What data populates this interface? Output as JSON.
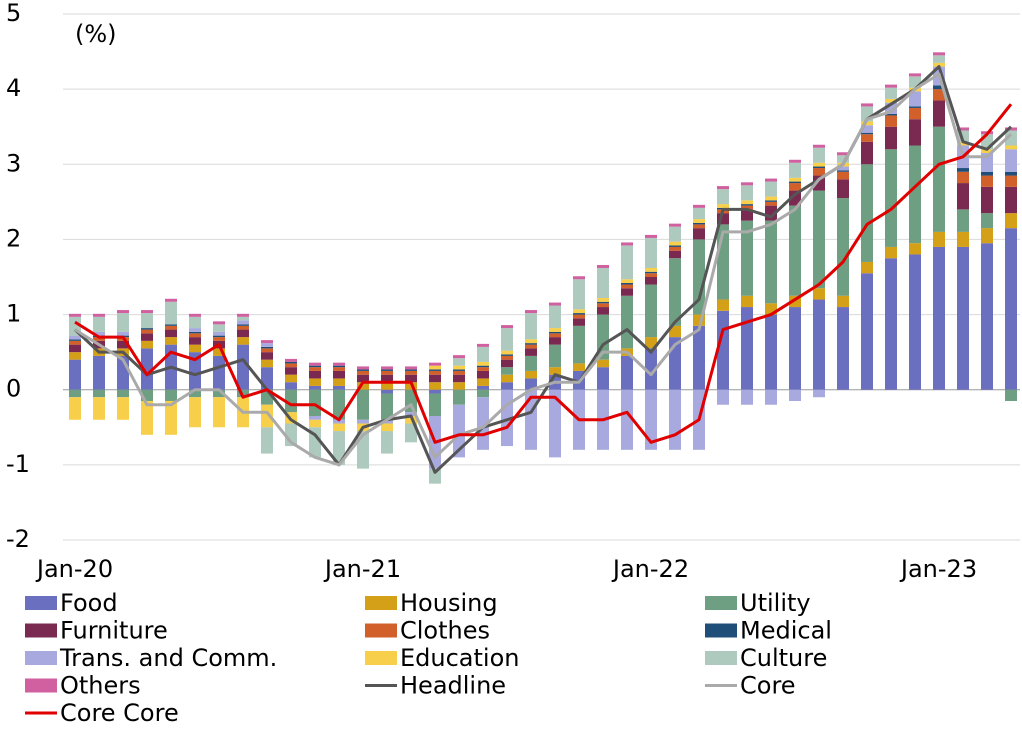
{
  "chart_data": {
    "type": "bar",
    "stacked": true,
    "annotation": "(%)",
    "categories": [
      "Jan-20",
      null,
      null,
      null,
      null,
      null,
      null,
      null,
      null,
      null,
      null,
      null,
      "Jan-21",
      null,
      null,
      null,
      null,
      null,
      null,
      null,
      null,
      null,
      null,
      null,
      "Jan-22",
      null,
      null,
      null,
      null,
      null,
      null,
      null,
      null,
      null,
      null,
      null,
      "Jan-23",
      null,
      null,
      null
    ],
    "ylim": [
      -2,
      5
    ],
    "yticks": [
      -2,
      -1,
      0,
      1,
      2,
      3,
      4,
      5
    ],
    "grid": true,
    "legend": "bottom",
    "series": [
      {
        "name": "Food",
        "color": "#6b6fbf",
        "values": [
          0.4,
          0.45,
          0.45,
          0.55,
          0.6,
          0.5,
          0.45,
          0.6,
          0.3,
          0.1,
          0.05,
          0.05,
          0.0,
          -0.05,
          0.0,
          -0.05,
          0.0,
          0.05,
          0.1,
          0.15,
          0.2,
          0.25,
          0.3,
          0.45,
          0.55,
          0.7,
          0.85,
          1.05,
          1.1,
          1.0,
          1.1,
          1.2,
          1.1,
          1.55,
          1.75,
          1.8,
          1.9,
          1.9,
          1.95,
          2.15
        ]
      },
      {
        "name": "Housing",
        "color": "#d4a017",
        "values": [
          0.1,
          0.1,
          0.1,
          0.1,
          0.1,
          0.1,
          0.1,
          0.1,
          0.1,
          0.1,
          0.1,
          0.1,
          0.1,
          0.1,
          0.1,
          0.1,
          0.1,
          0.1,
          0.1,
          0.1,
          0.1,
          0.1,
          0.1,
          0.1,
          0.15,
          0.15,
          0.15,
          0.15,
          0.15,
          0.15,
          0.15,
          0.15,
          0.15,
          0.15,
          0.15,
          0.15,
          0.2,
          0.2,
          0.2,
          0.2
        ]
      },
      {
        "name": "Utility",
        "color": "#6f9f82",
        "values": [
          -0.1,
          -0.1,
          -0.1,
          -0.15,
          -0.15,
          -0.1,
          -0.1,
          -0.1,
          -0.2,
          -0.3,
          -0.35,
          -0.4,
          -0.4,
          -0.35,
          -0.3,
          -0.3,
          -0.2,
          -0.1,
          0.1,
          0.2,
          0.3,
          0.5,
          0.6,
          0.7,
          0.7,
          0.9,
          1.0,
          1.0,
          1.0,
          1.1,
          1.2,
          1.3,
          1.3,
          1.3,
          1.3,
          1.3,
          1.4,
          0.3,
          0.2,
          -0.15
        ]
      },
      {
        "name": "Furniture",
        "color": "#7a2a50",
        "values": [
          0.1,
          0.1,
          0.1,
          0.1,
          0.1,
          0.1,
          0.1,
          0.1,
          0.1,
          0.1,
          0.1,
          0.1,
          0.1,
          0.1,
          0.1,
          0.1,
          0.1,
          0.1,
          0.1,
          0.1,
          0.1,
          0.1,
          0.1,
          0.1,
          0.1,
          0.1,
          0.15,
          0.15,
          0.15,
          0.2,
          0.2,
          0.2,
          0.25,
          0.3,
          0.3,
          0.35,
          0.35,
          0.35,
          0.35,
          0.35
        ]
      },
      {
        "name": "Clothes",
        "color": "#d2602a",
        "values": [
          0.05,
          0.05,
          0.05,
          0.05,
          0.05,
          0.05,
          0.05,
          0.05,
          0.05,
          0.05,
          0.05,
          0.05,
          0.05,
          0.05,
          0.05,
          0.05,
          0.05,
          0.05,
          0.05,
          0.05,
          0.05,
          0.05,
          0.05,
          0.05,
          0.05,
          0.05,
          0.05,
          0.05,
          0.05,
          0.05,
          0.1,
          0.1,
          0.1,
          0.1,
          0.15,
          0.15,
          0.15,
          0.15,
          0.15,
          0.15
        ]
      },
      {
        "name": "Medical",
        "color": "#1f4e79",
        "values": [
          0.02,
          0.02,
          0.02,
          0.02,
          0.02,
          0.02,
          0.02,
          0.02,
          0.02,
          0.02,
          0.02,
          0.02,
          0.02,
          0.02,
          0.02,
          0.02,
          0.02,
          0.02,
          0.02,
          0.02,
          0.02,
          0.02,
          0.02,
          0.02,
          0.02,
          0.02,
          0.02,
          0.02,
          0.02,
          0.02,
          0.02,
          0.02,
          0.02,
          0.02,
          0.02,
          0.02,
          0.05,
          0.05,
          0.05,
          0.05
        ]
      },
      {
        "name": "Trans. and Comm.",
        "color": "#a7a9df",
        "values": [
          0.05,
          0.05,
          0.05,
          0.0,
          0.0,
          0.05,
          0.05,
          0.05,
          0.05,
          0.0,
          -0.05,
          -0.05,
          -0.05,
          -0.05,
          -0.05,
          -0.7,
          -0.7,
          -0.7,
          -0.75,
          -0.8,
          -0.9,
          -0.8,
          -0.8,
          -0.8,
          -0.8,
          -0.8,
          -0.8,
          -0.2,
          -0.2,
          -0.2,
          -0.15,
          -0.1,
          0.05,
          0.1,
          0.15,
          0.2,
          0.25,
          0.3,
          0.25,
          0.3
        ]
      },
      {
        "name": "Education",
        "color": "#f7cf4a",
        "values": [
          -0.3,
          -0.3,
          -0.3,
          -0.45,
          -0.45,
          -0.4,
          -0.4,
          -0.4,
          -0.3,
          -0.15,
          -0.1,
          -0.1,
          -0.1,
          -0.1,
          -0.1,
          0.05,
          0.05,
          0.05,
          0.05,
          0.05,
          0.05,
          0.05,
          0.05,
          0.05,
          0.05,
          0.05,
          0.05,
          0.05,
          0.05,
          0.05,
          0.05,
          0.05,
          0.05,
          0.05,
          0.05,
          0.05,
          0.05,
          0.05,
          0.05,
          0.05
        ]
      },
      {
        "name": "Culture",
        "color": "#aec9bd",
        "values": [
          0.25,
          0.2,
          0.25,
          0.2,
          0.3,
          0.15,
          0.1,
          0.05,
          -0.35,
          -0.3,
          -0.4,
          -0.45,
          -0.5,
          -0.3,
          -0.25,
          -0.2,
          0.1,
          0.2,
          0.3,
          0.35,
          0.3,
          0.4,
          0.4,
          0.45,
          0.4,
          0.2,
          0.15,
          0.2,
          0.2,
          0.2,
          0.2,
          0.2,
          0.1,
          0.2,
          0.15,
          0.15,
          0.1,
          0.15,
          0.2,
          0.2
        ]
      },
      {
        "name": "Others",
        "color": "#d060a0",
        "values": [
          0.04,
          0.04,
          0.04,
          0.04,
          0.04,
          0.04,
          0.04,
          0.04,
          0.04,
          0.04,
          0.04,
          0.04,
          0.04,
          0.04,
          0.04,
          0.04,
          0.04,
          0.04,
          0.04,
          0.04,
          0.04,
          0.04,
          0.04,
          0.04,
          0.04,
          0.04,
          0.04,
          0.04,
          0.04,
          0.04,
          0.04,
          0.04,
          0.04,
          0.04,
          0.04,
          0.04,
          0.04,
          0.04,
          0.04,
          0.04
        ]
      },
      {
        "name": "Headline",
        "color": "#555555",
        "type": "line",
        "values": [
          0.8,
          0.5,
          0.5,
          0.2,
          0.3,
          0.2,
          0.3,
          0.4,
          0.0,
          -0.4,
          -0.6,
          -1.0,
          -0.5,
          -0.4,
          -0.35,
          -1.1,
          -0.8,
          -0.5,
          -0.4,
          -0.3,
          0.2,
          0.1,
          0.6,
          0.8,
          0.5,
          0.9,
          1.2,
          2.4,
          2.4,
          2.3,
          2.6,
          2.8,
          3.0,
          3.6,
          3.8,
          4.0,
          4.3,
          3.3,
          3.2,
          3.5
        ]
      },
      {
        "name": "Core",
        "color": "#aaaaaa",
        "type": "line",
        "values": [
          0.8,
          0.6,
          0.4,
          -0.2,
          -0.2,
          0.0,
          0.0,
          -0.3,
          -0.3,
          -0.7,
          -0.9,
          -1.0,
          -0.6,
          -0.4,
          -0.2,
          -0.9,
          -0.6,
          -0.5,
          -0.2,
          0.0,
          0.1,
          0.1,
          0.5,
          0.5,
          0.2,
          0.6,
          0.8,
          2.1,
          2.1,
          2.2,
          2.4,
          2.8,
          3.0,
          3.6,
          3.7,
          4.0,
          4.2,
          3.1,
          3.1,
          3.4
        ]
      },
      {
        "name": "Core Core",
        "color": "#e00000",
        "type": "line",
        "values": [
          0.9,
          0.7,
          0.7,
          0.2,
          0.5,
          0.4,
          0.6,
          -0.1,
          0.0,
          -0.2,
          -0.2,
          -0.4,
          0.1,
          0.1,
          0.1,
          -0.7,
          -0.6,
          -0.6,
          -0.5,
          -0.1,
          -0.1,
          -0.4,
          -0.4,
          -0.3,
          -0.7,
          -0.6,
          -0.4,
          0.8,
          0.9,
          1.0,
          1.2,
          1.4,
          1.7,
          2.2,
          2.4,
          2.7,
          3.0,
          3.1,
          3.4,
          3.8
        ]
      }
    ]
  }
}
